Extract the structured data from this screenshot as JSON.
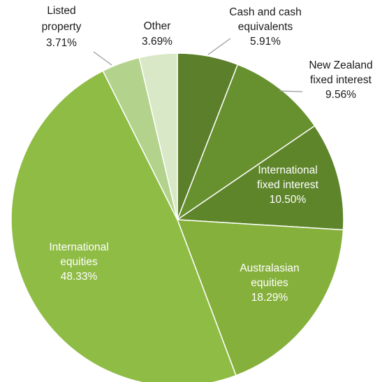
{
  "chart_data": {
    "type": "pie",
    "title": "",
    "start_angle_deg": 0,
    "direction": "clockwise",
    "slices": [
      {
        "label_lines": [
          "Cash and cash",
          "equivalents"
        ],
        "value_text": "5.91%",
        "value": 5.91,
        "color": "#5c7f2b",
        "label_placement": "outside",
        "label_color": "#1a1a1a"
      },
      {
        "label_lines": [
          "New Zealand",
          "fixed interest"
        ],
        "value_text": "9.56%",
        "value": 9.56,
        "color": "#67902e",
        "label_placement": "outside",
        "label_color": "#1a1a1a"
      },
      {
        "label_lines": [
          "International",
          "fixed interest"
        ],
        "value_text": "10.50%",
        "value": 10.5,
        "color": "#5f852b",
        "label_placement": "inside",
        "label_color": "#ffffff"
      },
      {
        "label_lines": [
          "Australasian",
          "equities"
        ],
        "value_text": "18.29%",
        "value": 18.29,
        "color": "#86b03c",
        "label_placement": "inside",
        "label_color": "#ffffff"
      },
      {
        "label_lines": [
          "International",
          "equities"
        ],
        "value_text": "48.33%",
        "value": 48.33,
        "color": "#8fbc45",
        "label_placement": "inside",
        "label_color": "#ffffff"
      },
      {
        "label_lines": [
          "Listed",
          "property"
        ],
        "value_text": "3.71%",
        "value": 3.71,
        "color": "#b3d38c",
        "label_placement": "outside",
        "label_color": "#1a1a1a"
      },
      {
        "label_lines": [
          "Other"
        ],
        "value_text": "3.69%",
        "value": 3.69,
        "color": "#d9e8c6",
        "label_placement": "outside",
        "label_color": "#1a1a1a"
      }
    ]
  }
}
